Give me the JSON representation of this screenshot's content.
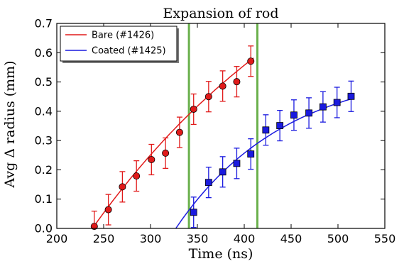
{
  "chart_data": {
    "type": "scatter",
    "title": "Expansion of rod",
    "xlabel": "Time (ns)",
    "ylabel": "Avg Δ radius (mm)",
    "xlim": [
      200,
      550
    ],
    "ylim": [
      0.0,
      0.7
    ],
    "xticks": [
      "200",
      "250",
      "300",
      "350",
      "400",
      "450",
      "500",
      "550"
    ],
    "yticks": [
      "0.0",
      "0.1",
      "0.2",
      "0.3",
      "0.4",
      "0.5",
      "0.6",
      "0.7"
    ],
    "grid": false,
    "legend_position": "top-left",
    "vertical_lines": [
      {
        "x": 341,
        "color": "#6ab04c"
      },
      {
        "x": 414,
        "color": "#6ab04c"
      }
    ],
    "series": [
      {
        "name": "Bare (#1426)",
        "color": "#e11a1a",
        "marker": "circle",
        "x": [
          240,
          255,
          270,
          285,
          301,
          316,
          331,
          346,
          362,
          377,
          392,
          407
        ],
        "y": [
          0.007,
          0.064,
          0.142,
          0.179,
          0.235,
          0.257,
          0.328,
          0.407,
          0.45,
          0.486,
          0.501,
          0.571
        ],
        "err": [
          0.052,
          0.052,
          0.052,
          0.052,
          0.052,
          0.052,
          0.052,
          0.052,
          0.052,
          0.052,
          0.052,
          0.052
        ],
        "fit": {
          "x_start": 238,
          "x_end": 410,
          "y_start": 0.0,
          "y_end": 0.582,
          "shape": "linear-decelerating"
        }
      },
      {
        "name": "Coated (#1425)",
        "color": "#1a1adf",
        "marker": "square",
        "x": [
          346,
          362,
          377,
          392,
          407,
          423,
          438,
          453,
          469,
          484,
          499,
          514
        ],
        "y": [
          0.055,
          0.157,
          0.193,
          0.222,
          0.254,
          0.336,
          0.351,
          0.387,
          0.394,
          0.415,
          0.43,
          0.451
        ],
        "err": [
          0.052,
          0.052,
          0.052,
          0.052,
          0.052,
          0.052,
          0.052,
          0.052,
          0.052,
          0.052,
          0.052,
          0.052
        ],
        "fit": {
          "x_start": 327,
          "x_end": 515,
          "y_start": 0.0,
          "y_end": 0.443,
          "shape": "saturating"
        }
      }
    ]
  }
}
